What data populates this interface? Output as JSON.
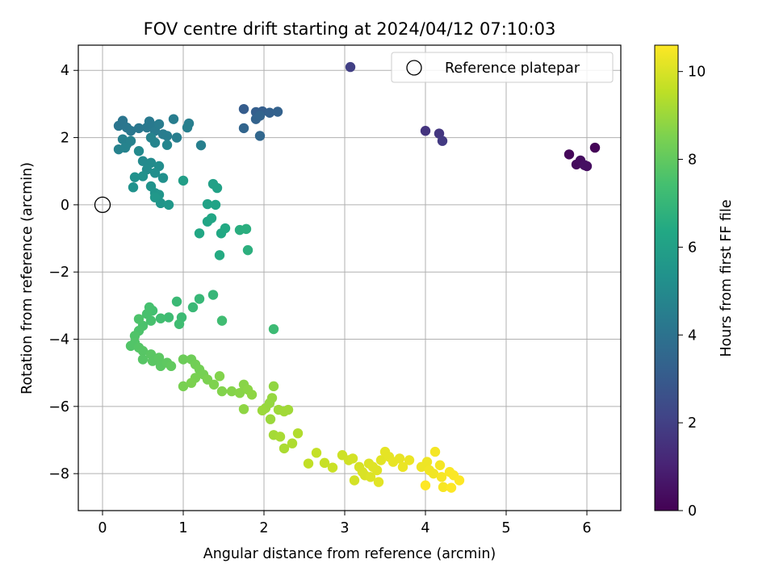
{
  "chart_data": {
    "type": "scatter",
    "title": "FOV centre drift starting at 2024/04/12 07:10:03",
    "xlabel": "Angular distance from reference (arcmin)",
    "ylabel": "Rotation from reference (arcmin)",
    "xlim": [
      -0.3,
      6.42
    ],
    "ylim": [
      -9.1,
      4.75
    ],
    "x_ticks": [
      0,
      1,
      2,
      3,
      4,
      5,
      6
    ],
    "y_ticks": [
      -8,
      -6,
      -4,
      -2,
      0,
      2,
      4
    ],
    "x_tick_labels": [
      "0",
      "1",
      "2",
      "3",
      "4",
      "5",
      "6"
    ],
    "y_tick_labels": [
      "−8",
      "−6",
      "−4",
      "−2",
      "0",
      "2",
      "4"
    ],
    "grid": true,
    "legend": {
      "position": "top-right",
      "entries": [
        {
          "label": "Reference platepar",
          "marker": "hollow-circle"
        }
      ]
    },
    "reference_point": {
      "x": 0,
      "y": 0
    },
    "colormap": "viridis",
    "colorbar": {
      "label": "Hours from first FF file",
      "range": [
        0,
        10.6
      ],
      "ticks": [
        0,
        2,
        4,
        6,
        8,
        10
      ],
      "tick_labels": [
        "0",
        "2",
        "4",
        "6",
        "8",
        "10"
      ]
    },
    "series": [
      {
        "points": [
          [
            6.1,
            1.7,
            0.1
          ],
          [
            5.78,
            1.5,
            0.2
          ],
          [
            5.87,
            1.2,
            0.3
          ],
          [
            5.92,
            1.32,
            0.35
          ],
          [
            6.0,
            1.15,
            0.4
          ],
          [
            5.97,
            1.18,
            0.45
          ],
          [
            4.0,
            2.2,
            1.6
          ],
          [
            4.17,
            2.12,
            1.7
          ],
          [
            4.21,
            1.9,
            1.8
          ],
          [
            3.07,
            4.1,
            2.0
          ],
          [
            1.75,
            2.85,
            3.1
          ],
          [
            1.9,
            2.76,
            3.2
          ],
          [
            1.98,
            2.78,
            3.2
          ],
          [
            2.07,
            2.74,
            3.25
          ],
          [
            2.17,
            2.77,
            3.3
          ],
          [
            1.9,
            2.55,
            3.35
          ],
          [
            1.95,
            2.65,
            3.4
          ],
          [
            1.75,
            2.28,
            3.45
          ],
          [
            1.95,
            2.05,
            3.5
          ],
          [
            0.2,
            2.35,
            4.1
          ],
          [
            0.25,
            2.5,
            4.1
          ],
          [
            0.3,
            2.3,
            4.15
          ],
          [
            0.35,
            2.2,
            4.2
          ],
          [
            0.45,
            2.28,
            4.2
          ],
          [
            0.55,
            2.3,
            4.25
          ],
          [
            0.58,
            2.48,
            4.3
          ],
          [
            0.62,
            2.35,
            4.3
          ],
          [
            0.65,
            2.2,
            4.35
          ],
          [
            0.7,
            2.4,
            4.4
          ],
          [
            0.75,
            2.1,
            4.4
          ],
          [
            0.8,
            2.05,
            4.45
          ],
          [
            0.88,
            2.55,
            4.45
          ],
          [
            0.92,
            2.0,
            4.5
          ],
          [
            1.07,
            2.42,
            4.5
          ],
          [
            1.05,
            2.3,
            4.55
          ],
          [
            1.22,
            1.77,
            4.55
          ],
          [
            0.25,
            1.95,
            4.6
          ],
          [
            0.3,
            1.8,
            4.6
          ],
          [
            0.35,
            1.9,
            4.65
          ],
          [
            0.2,
            1.65,
            4.65
          ],
          [
            0.28,
            1.7,
            4.7
          ],
          [
            0.6,
            2.0,
            4.7
          ],
          [
            0.65,
            1.85,
            4.75
          ],
          [
            0.8,
            1.78,
            4.8
          ],
          [
            0.5,
            1.3,
            5.0
          ],
          [
            0.6,
            1.25,
            5.05
          ],
          [
            0.45,
            1.6,
            5.0
          ],
          [
            0.55,
            1.05,
            5.1
          ],
          [
            0.7,
            1.15,
            5.15
          ],
          [
            0.65,
            0.95,
            5.2
          ],
          [
            0.75,
            0.8,
            5.25
          ],
          [
            0.4,
            0.82,
            5.3
          ],
          [
            0.5,
            0.85,
            5.3
          ],
          [
            0.38,
            0.52,
            5.35
          ],
          [
            0.6,
            0.55,
            5.4
          ],
          [
            0.65,
            0.35,
            5.45
          ],
          [
            0.7,
            0.3,
            5.5
          ],
          [
            0.72,
            0.05,
            5.5
          ],
          [
            0.82,
            0.0,
            5.6
          ],
          [
            0.65,
            0.22,
            5.6
          ],
          [
            1.0,
            0.72,
            5.9
          ],
          [
            1.37,
            0.62,
            6.0
          ],
          [
            1.42,
            0.5,
            6.05
          ],
          [
            1.3,
            0.02,
            6.1
          ],
          [
            1.4,
            0.0,
            6.15
          ],
          [
            1.3,
            -0.5,
            6.2
          ],
          [
            1.35,
            -0.4,
            6.25
          ],
          [
            1.2,
            -0.85,
            6.3
          ],
          [
            1.47,
            -0.85,
            6.35
          ],
          [
            1.52,
            -0.7,
            6.4
          ],
          [
            1.45,
            -1.5,
            6.45
          ],
          [
            1.7,
            -0.75,
            6.6
          ],
          [
            1.78,
            -0.72,
            6.65
          ],
          [
            1.8,
            -1.35,
            6.7
          ],
          [
            1.37,
            -2.68,
            7.0
          ],
          [
            1.2,
            -2.8,
            7.05
          ],
          [
            1.12,
            -3.05,
            7.1
          ],
          [
            0.92,
            -2.88,
            7.15
          ],
          [
            0.98,
            -3.35,
            7.2
          ],
          [
            0.82,
            -3.35,
            7.25
          ],
          [
            0.95,
            -3.55,
            7.3
          ],
          [
            0.72,
            -3.38,
            7.35
          ],
          [
            0.62,
            -3.15,
            7.4
          ],
          [
            0.58,
            -3.05,
            7.45
          ],
          [
            0.55,
            -3.25,
            7.5
          ],
          [
            0.6,
            -3.45,
            7.5
          ],
          [
            0.5,
            -3.6,
            7.55
          ],
          [
            0.45,
            -3.4,
            7.6
          ],
          [
            0.45,
            -3.75,
            7.6
          ],
          [
            0.4,
            -3.9,
            7.65
          ],
          [
            0.4,
            -4.1,
            7.7
          ],
          [
            0.35,
            -4.2,
            7.7
          ],
          [
            0.45,
            -4.25,
            7.75
          ],
          [
            0.5,
            -4.35,
            7.8
          ],
          [
            0.5,
            -4.6,
            7.8
          ],
          [
            0.6,
            -4.45,
            7.85
          ],
          [
            0.62,
            -4.65,
            7.85
          ],
          [
            0.7,
            -4.55,
            7.9
          ],
          [
            0.72,
            -4.8,
            7.9
          ],
          [
            0.8,
            -4.7,
            7.95
          ],
          [
            0.85,
            -4.8,
            8.0
          ],
          [
            1.48,
            -3.45,
            7.3
          ],
          [
            2.12,
            -3.7,
            7.2
          ],
          [
            1.0,
            -4.6,
            8.2
          ],
          [
            1.1,
            -4.6,
            8.25
          ],
          [
            1.15,
            -4.75,
            8.3
          ],
          [
            1.2,
            -4.9,
            8.35
          ],
          [
            1.25,
            -5.05,
            8.4
          ],
          [
            1.15,
            -5.15,
            8.45
          ],
          [
            1.0,
            -5.4,
            8.45
          ],
          [
            1.1,
            -5.3,
            8.5
          ],
          [
            1.3,
            -5.2,
            8.5
          ],
          [
            1.38,
            -5.35,
            8.55
          ],
          [
            1.45,
            -5.1,
            8.6
          ],
          [
            1.48,
            -5.55,
            8.6
          ],
          [
            1.6,
            -5.55,
            8.65
          ],
          [
            1.7,
            -5.6,
            8.7
          ],
          [
            1.75,
            -5.35,
            8.7
          ],
          [
            1.8,
            -5.5,
            8.75
          ],
          [
            1.85,
            -5.65,
            8.8
          ],
          [
            1.75,
            -6.08,
            8.8
          ],
          [
            2.12,
            -5.4,
            8.85
          ],
          [
            2.1,
            -5.75,
            8.9
          ],
          [
            2.07,
            -5.9,
            8.9
          ],
          [
            2.02,
            -6.05,
            8.95
          ],
          [
            1.98,
            -6.12,
            9.0
          ],
          [
            2.08,
            -6.38,
            9.0
          ],
          [
            2.18,
            -6.1,
            9.05
          ],
          [
            2.25,
            -6.15,
            9.1
          ],
          [
            2.3,
            -6.1,
            9.1
          ],
          [
            2.12,
            -6.85,
            9.15
          ],
          [
            2.2,
            -6.9,
            9.2
          ],
          [
            2.25,
            -7.25,
            9.25
          ],
          [
            2.35,
            -7.1,
            9.3
          ],
          [
            2.42,
            -6.8,
            9.35
          ],
          [
            2.55,
            -7.7,
            9.6
          ],
          [
            2.65,
            -7.38,
            9.65
          ],
          [
            2.75,
            -7.68,
            9.7
          ],
          [
            2.85,
            -7.82,
            9.75
          ],
          [
            2.97,
            -7.45,
            9.8
          ],
          [
            3.05,
            -7.6,
            9.85
          ],
          [
            3.1,
            -7.55,
            9.9
          ],
          [
            3.12,
            -8.2,
            9.9
          ],
          [
            3.18,
            -7.8,
            9.95
          ],
          [
            3.22,
            -7.95,
            10.0
          ],
          [
            3.25,
            -8.05,
            10.0
          ],
          [
            3.3,
            -7.7,
            10.05
          ],
          [
            3.32,
            -8.1,
            10.05
          ],
          [
            3.35,
            -7.8,
            10.1
          ],
          [
            3.4,
            -7.9,
            10.1
          ],
          [
            3.42,
            -8.25,
            10.15
          ],
          [
            3.45,
            -7.6,
            10.15
          ],
          [
            3.5,
            -7.35,
            10.2
          ],
          [
            3.55,
            -7.5,
            10.2
          ],
          [
            3.6,
            -7.65,
            10.25
          ],
          [
            3.68,
            -7.55,
            10.25
          ],
          [
            3.72,
            -7.8,
            10.3
          ],
          [
            3.8,
            -7.6,
            10.3
          ],
          [
            3.95,
            -7.8,
            10.35
          ],
          [
            4.02,
            -7.65,
            10.35
          ],
          [
            4.05,
            -7.9,
            10.4
          ],
          [
            4.1,
            -8.0,
            10.4
          ],
          [
            4.12,
            -7.35,
            10.45
          ],
          [
            4.18,
            -7.75,
            10.45
          ],
          [
            4.2,
            -8.1,
            10.5
          ],
          [
            4.22,
            -8.4,
            10.5
          ],
          [
            4.3,
            -7.95,
            10.55
          ],
          [
            4.35,
            -8.05,
            10.55
          ],
          [
            4.32,
            -8.42,
            10.6
          ],
          [
            4.42,
            -8.2,
            10.6
          ],
          [
            4.0,
            -8.35,
            10.6
          ]
        ]
      }
    ]
  }
}
